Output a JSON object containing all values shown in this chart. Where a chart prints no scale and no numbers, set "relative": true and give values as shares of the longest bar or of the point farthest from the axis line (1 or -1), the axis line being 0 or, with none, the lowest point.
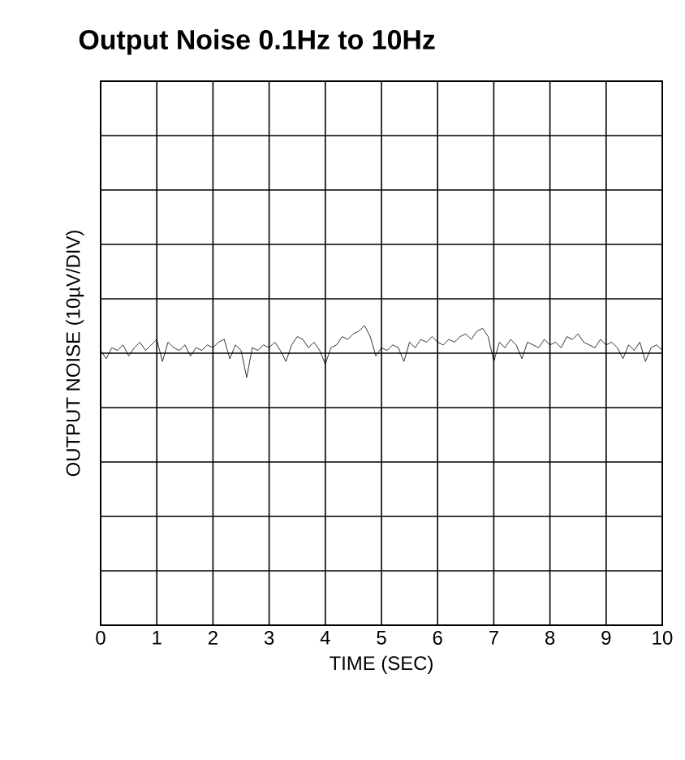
{
  "chart_data": {
    "type": "line",
    "title": "Output Noise 0.1Hz to 10Hz",
    "xlabel": "TIME (SEC)",
    "ylabel": "OUTPUT NOISE (10µV/DIV)",
    "relative": true,
    "xlim": [
      0,
      10
    ],
    "xticks": [
      0,
      1,
      2,
      3,
      4,
      5,
      6,
      7,
      8,
      9,
      10
    ],
    "grid": true,
    "marker": "none",
    "line_style": "solid",
    "x": [
      0.0,
      0.1,
      0.2,
      0.3,
      0.4,
      0.5,
      0.6,
      0.7,
      0.8,
      0.9,
      1.0,
      1.1,
      1.2,
      1.3,
      1.4,
      1.5,
      1.6,
      1.7,
      1.8,
      1.9,
      2.0,
      2.1,
      2.2,
      2.3,
      2.4,
      2.5,
      2.6,
      2.7,
      2.8,
      2.9,
      3.0,
      3.1,
      3.2,
      3.3,
      3.4,
      3.5,
      3.6,
      3.7,
      3.8,
      3.9,
      4.0,
      4.1,
      4.2,
      4.3,
      4.4,
      4.5,
      4.6,
      4.7,
      4.8,
      4.9,
      5.0,
      5.1,
      5.2,
      5.3,
      5.4,
      5.5,
      5.6,
      5.7,
      5.8,
      5.9,
      6.0,
      6.1,
      6.2,
      6.3,
      6.4,
      6.5,
      6.6,
      6.7,
      6.8,
      6.9,
      7.0,
      7.1,
      7.2,
      7.3,
      7.4,
      7.5,
      7.6,
      7.7,
      7.8,
      7.9,
      8.0,
      8.1,
      8.2,
      8.3,
      8.4,
      8.5,
      8.6,
      8.7,
      8.8,
      8.9,
      9.0,
      9.1,
      9.2,
      9.3,
      9.4,
      9.5,
      9.6,
      9.7,
      9.8,
      9.9,
      10.0
    ],
    "series": [
      {
        "color": "#000000",
        "values": [
          0.1,
          -0.2,
          0.2,
          0.1,
          0.3,
          -0.1,
          0.2,
          0.4,
          0.1,
          0.3,
          0.5,
          -0.3,
          0.4,
          0.2,
          0.1,
          0.3,
          -0.1,
          0.2,
          0.1,
          0.3,
          0.2,
          0.4,
          0.5,
          -0.2,
          0.3,
          0.1,
          -0.88,
          0.2,
          0.1,
          0.3,
          0.2,
          0.4,
          0.1,
          -0.3,
          0.3,
          0.6,
          0.5,
          0.2,
          0.4,
          0.1,
          -0.4,
          0.2,
          0.3,
          0.6,
          0.5,
          0.7,
          0.8,
          1.0,
          0.6,
          -0.1,
          0.2,
          0.1,
          0.3,
          0.2,
          -0.3,
          0.4,
          0.2,
          0.5,
          0.4,
          0.6,
          0.4,
          0.3,
          0.5,
          0.4,
          0.6,
          0.7,
          0.5,
          0.8,
          0.9,
          0.6,
          -0.3,
          0.4,
          0.2,
          0.5,
          0.3,
          -0.2,
          0.4,
          0.3,
          0.2,
          0.5,
          0.3,
          0.4,
          0.2,
          0.6,
          0.5,
          0.7,
          0.4,
          0.3,
          0.2,
          0.5,
          0.3,
          0.4,
          0.2,
          -0.2,
          0.3,
          0.1,
          0.4,
          -0.3,
          0.2,
          0.3,
          0.1
        ]
      }
    ]
  }
}
